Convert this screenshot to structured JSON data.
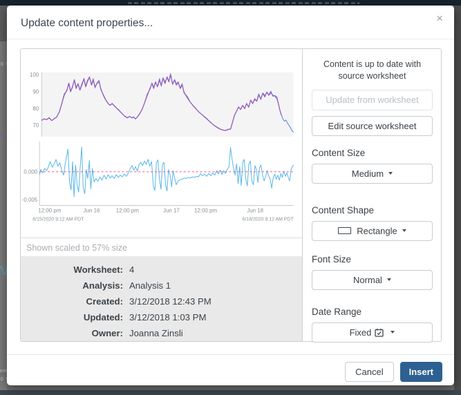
{
  "dialog": {
    "title": "Update content properties...",
    "close_icon": "×"
  },
  "backdrop": {
    "fragments": [
      "0 9",
      "om",
      "0 9"
    ]
  },
  "preview": {
    "scale_note": "Shown scaled to 57% size",
    "meta": {
      "rows": [
        {
          "label": "Worksheet:",
          "value": "4"
        },
        {
          "label": "Analysis:",
          "value": "Analysis 1"
        },
        {
          "label": "Created:",
          "value": "3/12/2018 12:43 PM"
        },
        {
          "label": "Updated:",
          "value": "3/12/2018 1:03 PM"
        },
        {
          "label": "Owner:",
          "value": "Joanna Zinsli"
        }
      ]
    },
    "charts": {
      "top": {
        "type": "line",
        "colors": {
          "primary": "#9c58b8",
          "secondary": "#6a93d8"
        },
        "y_ticks": [
          {
            "label": "100",
            "v": 100
          },
          {
            "label": "90",
            "v": 90
          },
          {
            "label": "80",
            "v": 80
          },
          {
            "label": "70",
            "v": 70
          }
        ],
        "anchors": [
          [
            0,
            73
          ],
          [
            0.01,
            74
          ],
          [
            0.02,
            73.5
          ],
          [
            0.03,
            74.5
          ],
          [
            0.04,
            73
          ],
          [
            0.05,
            74
          ],
          [
            0.06,
            75
          ],
          [
            0.07,
            78
          ],
          [
            0.08,
            83
          ],
          [
            0.09,
            88
          ],
          [
            0.1,
            91
          ],
          [
            0.108,
            95
          ],
          [
            0.115,
            90
          ],
          [
            0.122,
            93
          ],
          [
            0.13,
            97
          ],
          [
            0.137,
            92
          ],
          [
            0.145,
            95
          ],
          [
            0.152,
            91
          ],
          [
            0.16,
            94
          ],
          [
            0.168,
            98
          ],
          [
            0.175,
            93
          ],
          [
            0.182,
            96
          ],
          [
            0.19,
            99
          ],
          [
            0.198,
            94
          ],
          [
            0.205,
            97
          ],
          [
            0.212,
            93
          ],
          [
            0.22,
            95
          ],
          [
            0.228,
            96
          ],
          [
            0.235,
            92
          ],
          [
            0.245,
            88
          ],
          [
            0.255,
            85
          ],
          [
            0.265,
            83
          ],
          [
            0.272,
            82
          ],
          [
            0.28,
            83
          ],
          [
            0.29,
            81.5
          ],
          [
            0.3,
            80
          ],
          [
            0.31,
            78.5
          ],
          [
            0.32,
            77
          ],
          [
            0.33,
            75.5
          ],
          [
            0.34,
            74.5
          ],
          [
            0.35,
            75.5
          ],
          [
            0.358,
            74.5
          ],
          [
            0.365,
            75
          ],
          [
            0.372,
            74
          ],
          [
            0.38,
            75
          ],
          [
            0.39,
            77
          ],
          [
            0.4,
            80
          ],
          [
            0.41,
            84
          ],
          [
            0.42,
            88
          ],
          [
            0.43,
            92
          ],
          [
            0.438,
            95
          ],
          [
            0.445,
            92
          ],
          [
            0.452,
            96
          ],
          [
            0.46,
            93
          ],
          [
            0.468,
            97
          ],
          [
            0.475,
            94
          ],
          [
            0.482,
            98
          ],
          [
            0.49,
            95
          ],
          [
            0.498,
            99
          ],
          [
            0.505,
            96
          ],
          [
            0.512,
            100
          ],
          [
            0.52,
            95
          ],
          [
            0.528,
            97
          ],
          [
            0.535,
            94
          ],
          [
            0.542,
            96
          ],
          [
            0.55,
            92
          ],
          [
            0.558,
            94
          ],
          [
            0.565,
            90
          ],
          [
            0.572,
            88
          ],
          [
            0.58,
            86
          ],
          [
            0.59,
            84
          ],
          [
            0.6,
            82
          ],
          [
            0.612,
            80
          ],
          [
            0.625,
            78
          ],
          [
            0.64,
            76
          ],
          [
            0.655,
            74
          ],
          [
            0.67,
            72
          ],
          [
            0.685,
            70
          ],
          [
            0.7,
            68.5
          ],
          [
            0.715,
            67.5
          ],
          [
            0.73,
            67
          ],
          [
            0.74,
            67.5
          ],
          [
            0.75,
            68
          ],
          [
            0.758,
            72
          ],
          [
            0.766,
            76
          ],
          [
            0.775,
            79
          ],
          [
            0.782,
            81
          ],
          [
            0.79,
            79.5
          ],
          [
            0.798,
            82
          ],
          [
            0.806,
            80
          ],
          [
            0.814,
            83
          ],
          [
            0.822,
            81
          ],
          [
            0.83,
            85
          ],
          [
            0.838,
            83
          ],
          [
            0.846,
            86
          ],
          [
            0.854,
            84.5
          ],
          [
            0.862,
            88
          ],
          [
            0.87,
            86
          ],
          [
            0.878,
            89
          ],
          [
            0.886,
            87
          ],
          [
            0.894,
            90
          ],
          [
            0.902,
            88
          ],
          [
            0.91,
            89.5
          ],
          [
            0.918,
            88
          ],
          [
            0.926,
            87.5
          ],
          [
            0.934,
            86
          ],
          [
            0.94,
            83
          ],
          [
            0.946,
            79
          ],
          [
            0.952,
            76
          ],
          [
            0.958,
            74
          ],
          [
            0.964,
            72.5
          ],
          [
            0.97,
            73
          ],
          [
            0.976,
            71.5
          ],
          [
            0.982,
            70
          ],
          [
            0.988,
            68.5
          ],
          [
            0.994,
            67
          ],
          [
            1,
            66
          ]
        ]
      },
      "bottom": {
        "type": "line",
        "color": "#54b6e8",
        "zero_line_color": "#f25981",
        "y_ticks": [
          {
            "label": "0.000",
            "v": 0
          },
          {
            "label": "-0.005",
            "v": -5
          }
        ],
        "x_ticks": [
          {
            "label": "12:00 pm",
            "f": 0.04
          },
          {
            "label": "Jun 16",
            "f": 0.205
          },
          {
            "label": "12:00 pm",
            "f": 0.346
          },
          {
            "label": "Jun 17",
            "f": 0.519
          },
          {
            "label": "12:00 pm",
            "f": 0.654
          },
          {
            "label": "Jun 18",
            "f": 0.849
          }
        ],
        "footnote_left": "6/15/2020 9:12 AM PDT",
        "footnote_right": "6/18/2020 9:12 AM PDT",
        "anchors": [
          [
            0,
            -0.5
          ],
          [
            0.005,
            0.4
          ],
          [
            0.012,
            -0.2
          ],
          [
            0.02,
            0.6
          ],
          [
            0.028,
            0.2
          ],
          [
            0.035,
            0.9
          ],
          [
            0.042,
            1.8
          ],
          [
            0.05,
            0.8
          ],
          [
            0.058,
            1.4
          ],
          [
            0.065,
            2.2
          ],
          [
            0.072,
            1
          ],
          [
            0.08,
            1.6
          ],
          [
            0.088,
            0.2
          ],
          [
            0.095,
            -0.6
          ],
          [
            0.1,
            1.2
          ],
          [
            0.106,
            2.6
          ],
          [
            0.112,
            4
          ],
          [
            0.118,
            -1.8
          ],
          [
            0.124,
            -3.2
          ],
          [
            0.13,
            1.8
          ],
          [
            0.136,
            -4.4
          ],
          [
            0.142,
            1.2
          ],
          [
            0.148,
            -2.4
          ],
          [
            0.154,
            -3.6
          ],
          [
            0.16,
            0.8
          ],
          [
            0.166,
            4.4
          ],
          [
            0.172,
            -2.8
          ],
          [
            0.178,
            -3.9
          ],
          [
            0.184,
            0.4
          ],
          [
            0.19,
            -1.2
          ],
          [
            0.196,
            2
          ],
          [
            0.202,
            -3
          ],
          [
            0.208,
            0.6
          ],
          [
            0.215,
            -1.8
          ],
          [
            0.222,
            -1.2
          ],
          [
            0.23,
            -1.7
          ],
          [
            0.238,
            -0.9
          ],
          [
            0.246,
            -1.5
          ],
          [
            0.254,
            -0.6
          ],
          [
            0.262,
            -1.3
          ],
          [
            0.27,
            -0.5
          ],
          [
            0.278,
            -1.1
          ],
          [
            0.286,
            -0.7
          ],
          [
            0.294,
            -1.2
          ],
          [
            0.302,
            -0.5
          ],
          [
            0.31,
            -1
          ],
          [
            0.318,
            -0.6
          ],
          [
            0.326,
            -0.9
          ],
          [
            0.334,
            -0.4
          ],
          [
            0.342,
            -0.8
          ],
          [
            0.35,
            -0.2
          ],
          [
            0.357,
            0.6
          ],
          [
            0.364,
            1.1
          ],
          [
            0.371,
            0.3
          ],
          [
            0.378,
            0.9
          ],
          [
            0.385,
            0.1
          ],
          [
            0.392,
            1.3
          ],
          [
            0.399,
            1.7
          ],
          [
            0.406,
            1.1
          ],
          [
            0.413,
            1.9
          ],
          [
            0.42,
            1.3
          ],
          [
            0.427,
            2.2
          ],
          [
            0.434,
            1
          ],
          [
            0.441,
            1.8
          ],
          [
            0.448,
            -2.6
          ],
          [
            0.454,
            -3.3
          ],
          [
            0.46,
            1.6
          ],
          [
            0.466,
            2.1
          ],
          [
            0.472,
            -1.2
          ],
          [
            0.478,
            -3.1
          ],
          [
            0.484,
            1.3
          ],
          [
            0.49,
            1.7
          ],
          [
            0.496,
            -2.2
          ],
          [
            0.502,
            -3.4
          ],
          [
            0.508,
            0.4
          ],
          [
            0.514,
            -0.6
          ],
          [
            0.52,
            -2.7
          ],
          [
            0.526,
            0.2
          ],
          [
            0.532,
            -1.1
          ],
          [
            0.538,
            -2.3
          ],
          [
            0.546,
            -1.6
          ],
          [
            0.554,
            -1.4
          ],
          [
            0.562,
            -1.3
          ],
          [
            0.57,
            -1.1
          ],
          [
            0.578,
            -1.2
          ],
          [
            0.586,
            -1
          ],
          [
            0.594,
            -1.1
          ],
          [
            0.602,
            -0.9
          ],
          [
            0.61,
            -1
          ],
          [
            0.618,
            -0.8
          ],
          [
            0.626,
            -0.9
          ],
          [
            0.634,
            -0.3
          ],
          [
            0.642,
            -0.7
          ],
          [
            0.65,
            -0.4
          ],
          [
            0.658,
            -0.8
          ],
          [
            0.666,
            -0.3
          ],
          [
            0.674,
            -0.7
          ],
          [
            0.682,
            -0.2
          ],
          [
            0.69,
            -0.6
          ],
          [
            0.697,
            0.2
          ],
          [
            0.704,
            -0.4
          ],
          [
            0.711,
            0.3
          ],
          [
            0.718,
            -0.5
          ],
          [
            0.725,
            0.2
          ],
          [
            0.732,
            -0.3
          ],
          [
            0.739,
            0.4
          ],
          [
            0.746,
            0.9
          ],
          [
            0.752,
            4.3
          ],
          [
            0.758,
            2.2
          ],
          [
            0.764,
            0.6
          ],
          [
            0.77,
            -0.6
          ],
          [
            0.776,
            1.4
          ],
          [
            0.782,
            -2.1
          ],
          [
            0.788,
            0.9
          ],
          [
            0.794,
            -2.4
          ],
          [
            0.8,
            1.7
          ],
          [
            0.806,
            2.2
          ],
          [
            0.812,
            -1.2
          ],
          [
            0.818,
            -2.5
          ],
          [
            0.824,
            1.4
          ],
          [
            0.83,
            1.9
          ],
          [
            0.836,
            -1.6
          ],
          [
            0.842,
            -2.3
          ],
          [
            0.848,
            1.1
          ],
          [
            0.854,
            0.4
          ],
          [
            0.86,
            -1.9
          ],
          [
            0.866,
            0.7
          ],
          [
            0.872,
            1.2
          ],
          [
            0.878,
            -0.6
          ],
          [
            0.884,
            -1.6
          ],
          [
            0.89,
            -0.9
          ],
          [
            0.896,
            0.2
          ],
          [
            0.902,
            -0.7
          ],
          [
            0.908,
            -1.3
          ],
          [
            0.914,
            -2.9
          ],
          [
            0.92,
            -1.1
          ],
          [
            0.926,
            -0.4
          ],
          [
            0.932,
            -1.3
          ],
          [
            0.938,
            -0.6
          ],
          [
            0.944,
            -1.5
          ],
          [
            0.95,
            -0.3
          ],
          [
            0.956,
            -1
          ],
          [
            0.962,
            0.1
          ],
          [
            0.968,
            -0.8
          ],
          [
            0.974,
            -0.2
          ],
          [
            0.98,
            -1.1
          ],
          [
            0.985,
            -1.6
          ],
          [
            0.99,
            0.3
          ],
          [
            0.995,
            0.9
          ],
          [
            1,
            1.2
          ]
        ]
      }
    }
  },
  "controls": {
    "status_text": "Content is up to date with source worksheet",
    "update_button": "Update from worksheet",
    "edit_button": "Edit source worksheet",
    "groups": [
      {
        "label": "Content Size",
        "value": "Medium"
      },
      {
        "label": "Content Shape",
        "value": "Rectangle"
      },
      {
        "label": "Font Size",
        "value": "Normal"
      },
      {
        "label": "Date Range",
        "value": "Fixed"
      }
    ]
  },
  "footer": {
    "cancel": "Cancel",
    "insert": "Insert"
  },
  "colors": {
    "accent": "#2d6191",
    "meta_bg": "#e9e9e9"
  }
}
